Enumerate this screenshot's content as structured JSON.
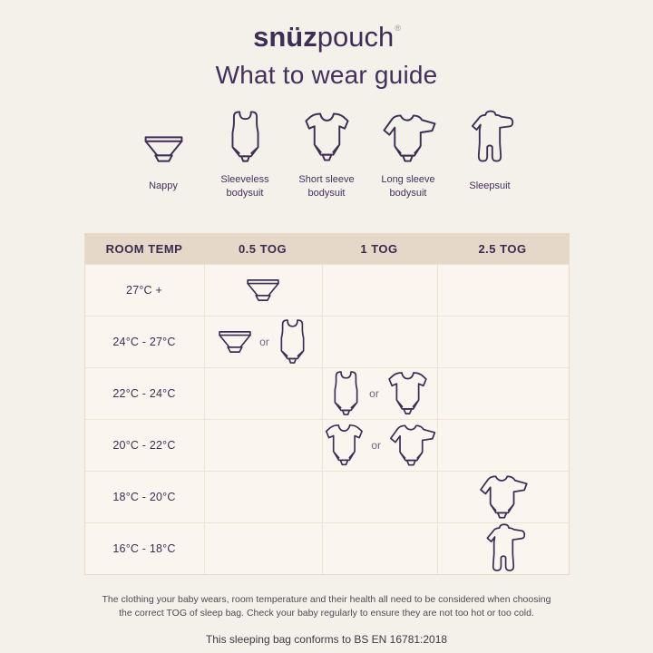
{
  "brand": {
    "logo_bold": "snüz",
    "logo_light": "pouch",
    "registered_mark": "®"
  },
  "title": "What to wear guide",
  "legend": {
    "items": [
      {
        "icon": "nappy",
        "label": "Nappy"
      },
      {
        "icon": "sleeveless-bodysuit",
        "label": "Sleeveless bodysuit"
      },
      {
        "icon": "short-sleeve-bodysuit",
        "label": "Short sleeve bodysuit"
      },
      {
        "icon": "long-sleeve-bodysuit",
        "label": "Long sleeve bodysuit"
      },
      {
        "icon": "sleepsuit",
        "label": "Sleepsuit"
      }
    ]
  },
  "table": {
    "headers": [
      "ROOM TEMP",
      "0.5 TOG",
      "1 TOG",
      "2.5 TOG"
    ],
    "or_label": "or",
    "rows": [
      {
        "temp": "27°C +",
        "cells": [
          [
            "nappy"
          ],
          [],
          []
        ]
      },
      {
        "temp": "24°C - 27°C",
        "cells": [
          [
            "nappy",
            "or",
            "sleeveless-bodysuit"
          ],
          [],
          []
        ]
      },
      {
        "temp": "22°C - 24°C",
        "cells": [
          [],
          [
            "sleeveless-bodysuit",
            "or",
            "short-sleeve-bodysuit"
          ],
          []
        ]
      },
      {
        "temp": "20°C - 22°C",
        "cells": [
          [],
          [
            "short-sleeve-bodysuit",
            "or",
            "long-sleeve-bodysuit"
          ],
          []
        ]
      },
      {
        "temp": "18°C - 20°C",
        "cells": [
          [],
          [],
          [
            "long-sleeve-bodysuit"
          ]
        ]
      },
      {
        "temp": "16°C - 18°C",
        "cells": [
          [],
          [],
          [
            "sleepsuit"
          ]
        ]
      }
    ]
  },
  "footer": {
    "disclaimer_line1": "The clothing your baby wears, room temperature and their health all need to be considered when choosing",
    "disclaimer_line2": "the correct TOG of sleep bag. Check your baby regularly to ensure they are not too hot or too cold.",
    "conformity": "This sleeping bag conforms to BS EN 16781:2018"
  },
  "colors": {
    "purple": "#3e2d55",
    "page_bg": "#f4f1ea",
    "cell_bg": "#faf5ee",
    "header_bg": "#e5d8c8",
    "grid_line": "#f0e2d1",
    "or_text": "#6f6680"
  }
}
